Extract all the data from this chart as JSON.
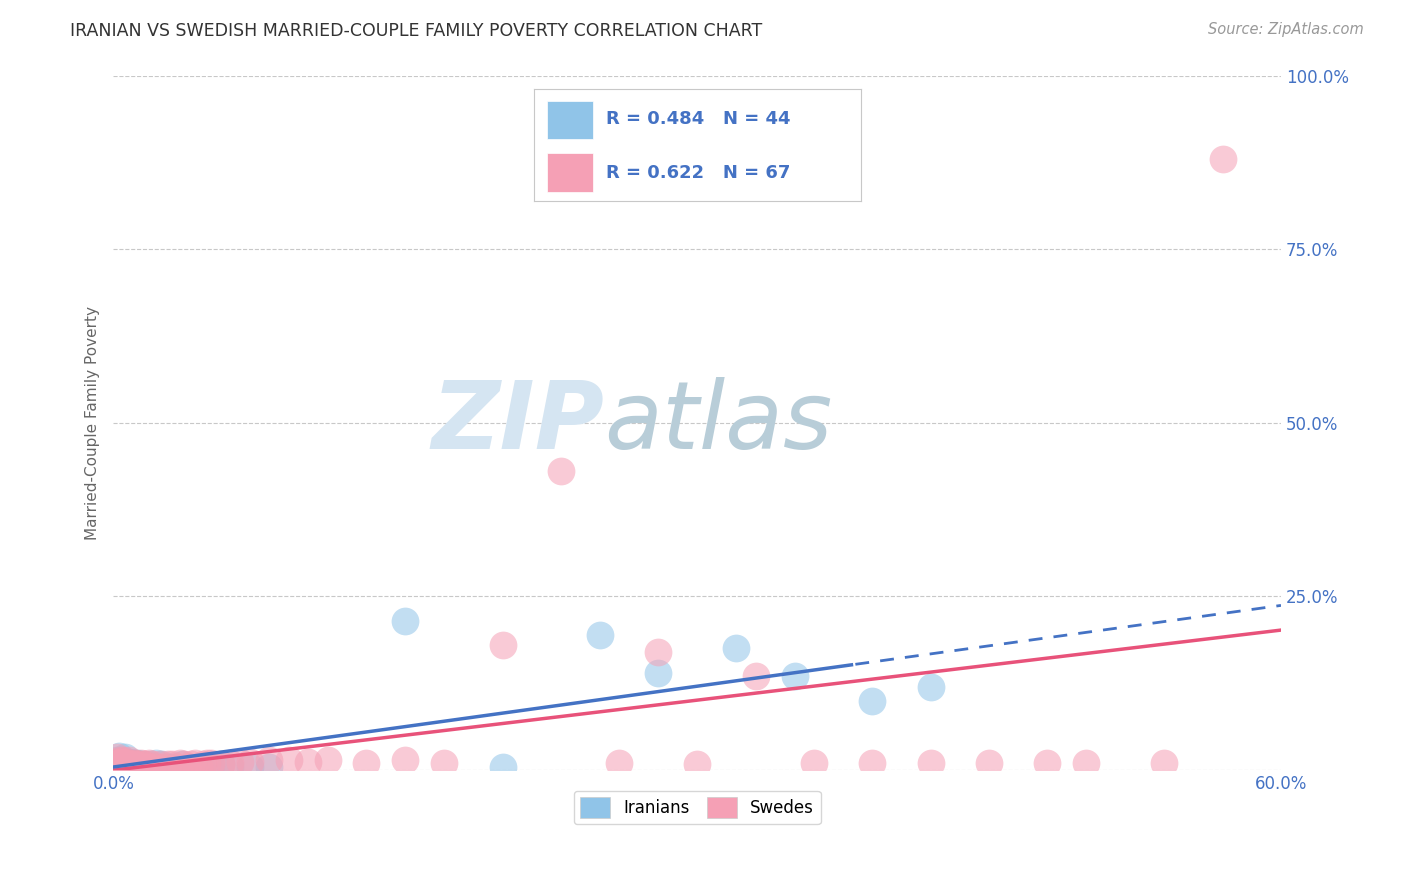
{
  "title": "IRANIAN VS SWEDISH MARRIED-COUPLE FAMILY POVERTY CORRELATION CHART",
  "source": "Source: ZipAtlas.com",
  "ylabel": "Married-Couple Family Poverty",
  "xlim": [
    0.0,
    0.6
  ],
  "ylim": [
    0.0,
    1.0
  ],
  "yticks": [
    0.0,
    0.25,
    0.5,
    0.75,
    1.0
  ],
  "yticklabels_right": [
    "",
    "25.0%",
    "50.0%",
    "75.0%",
    "100.0%"
  ],
  "xtick_left_label": "0.0%",
  "xtick_right_label": "60.0%",
  "iranian_R": "0.484",
  "iranian_N": "44",
  "swedish_R": "0.622",
  "swedish_N": "67",
  "iranian_color": "#90C4E8",
  "swedish_color": "#F5A0B5",
  "iranian_line_color": "#4472C4",
  "swedish_line_color": "#E8527A",
  "background_color": "#ffffff",
  "grid_color": "#c8c8c8",
  "title_color": "#333333",
  "axis_label_color": "#666666",
  "tick_label_color": "#4472C4",
  "legend_border_color": "#c8c8c8",
  "iranians_x": [
    0.001,
    0.002,
    0.002,
    0.003,
    0.003,
    0.004,
    0.004,
    0.005,
    0.005,
    0.006,
    0.006,
    0.007,
    0.008,
    0.008,
    0.009,
    0.01,
    0.011,
    0.012,
    0.013,
    0.014,
    0.015,
    0.016,
    0.018,
    0.02,
    0.022,
    0.025,
    0.028,
    0.03,
    0.035,
    0.04,
    0.045,
    0.05,
    0.055,
    0.06,
    0.07,
    0.08,
    0.15,
    0.2,
    0.25,
    0.28,
    0.32,
    0.35,
    0.39,
    0.42
  ],
  "iranians_y": [
    0.005,
    0.01,
    0.015,
    0.01,
    0.02,
    0.008,
    0.015,
    0.012,
    0.01,
    0.018,
    0.008,
    0.01,
    0.012,
    0.005,
    0.01,
    0.008,
    0.01,
    0.01,
    0.008,
    0.005,
    0.008,
    0.005,
    0.008,
    0.005,
    0.01,
    0.008,
    0.005,
    0.005,
    0.008,
    0.005,
    0.005,
    0.005,
    0.008,
    0.005,
    0.005,
    0.005,
    0.215,
    0.005,
    0.195,
    0.14,
    0.175,
    0.135,
    0.1,
    0.12
  ],
  "swedes_x": [
    0.001,
    0.001,
    0.002,
    0.002,
    0.003,
    0.003,
    0.004,
    0.004,
    0.005,
    0.005,
    0.006,
    0.006,
    0.007,
    0.008,
    0.008,
    0.009,
    0.01,
    0.011,
    0.012,
    0.013,
    0.014,
    0.015,
    0.016,
    0.017,
    0.018,
    0.019,
    0.02,
    0.022,
    0.024,
    0.026,
    0.028,
    0.03,
    0.032,
    0.034,
    0.036,
    0.038,
    0.04,
    0.042,
    0.044,
    0.046,
    0.048,
    0.05,
    0.055,
    0.06,
    0.065,
    0.07,
    0.08,
    0.09,
    0.1,
    0.11,
    0.13,
    0.15,
    0.17,
    0.2,
    0.23,
    0.26,
    0.28,
    0.3,
    0.33,
    0.36,
    0.39,
    0.42,
    0.45,
    0.48,
    0.5,
    0.54,
    0.57
  ],
  "swedes_y": [
    0.008,
    0.012,
    0.01,
    0.018,
    0.01,
    0.015,
    0.008,
    0.012,
    0.015,
    0.008,
    0.012,
    0.008,
    0.01,
    0.015,
    0.005,
    0.01,
    0.008,
    0.01,
    0.008,
    0.005,
    0.01,
    0.008,
    0.008,
    0.005,
    0.01,
    0.005,
    0.008,
    0.005,
    0.008,
    0.005,
    0.008,
    0.008,
    0.005,
    0.01,
    0.008,
    0.005,
    0.008,
    0.01,
    0.005,
    0.008,
    0.01,
    0.01,
    0.008,
    0.01,
    0.012,
    0.012,
    0.015,
    0.015,
    0.012,
    0.015,
    0.01,
    0.015,
    0.01,
    0.18,
    0.43,
    0.01,
    0.17,
    0.008,
    0.135,
    0.01,
    0.01,
    0.01,
    0.01,
    0.01,
    0.01,
    0.01,
    0.88
  ]
}
